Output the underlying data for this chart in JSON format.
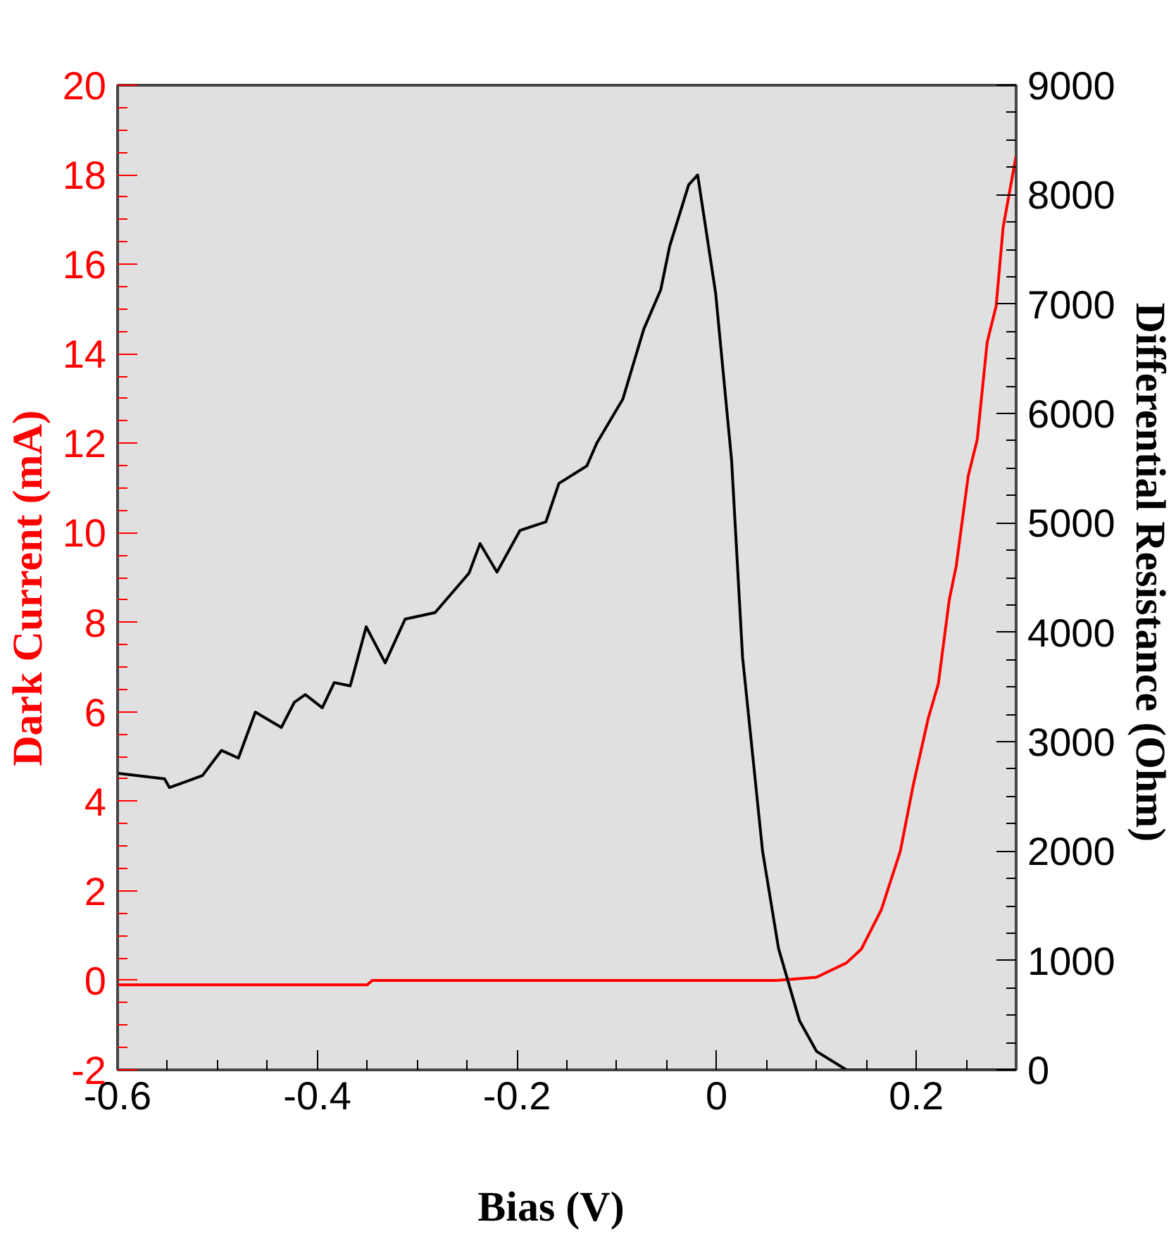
{
  "chart_data": {
    "type": "line",
    "xlabel": "Bias    (V)",
    "ylabel": "Dark Current   (mA)",
    "y2label": "Differential Resistance  (Ohm)",
    "xlim": [
      -0.6,
      0.3
    ],
    "xticks": [
      -0.6,
      -0.4,
      -0.2,
      0,
      0.2
    ],
    "ylim": [
      -2,
      20
    ],
    "yticks": [
      -2,
      0,
      2,
      4,
      6,
      8,
      10,
      12,
      14,
      16,
      18,
      20
    ],
    "y2lim": [
      0,
      9000
    ],
    "y2ticks": [
      0,
      1000,
      2000,
      3000,
      4000,
      5000,
      6000,
      7000,
      8000,
      9000
    ],
    "grid": false,
    "marker": "none",
    "line_style": "solid",
    "series": [
      {
        "color": "#ff0000",
        "x": [
          -0.6,
          -0.35,
          -0.345,
          0.06,
          0.1,
          0.13,
          0.145,
          0.165,
          0.184,
          0.197,
          0.212,
          0.222,
          0.233,
          0.24,
          0.252,
          0.261,
          0.271,
          0.28,
          0.287,
          0.3
        ],
        "values": [
          -0.1,
          -0.1,
          0,
          0,
          0.07,
          0.39,
          0.7,
          1.58,
          2.89,
          4.37,
          5.86,
          6.62,
          8.5,
          9.26,
          11.27,
          12.08,
          14.26,
          15.07,
          16.83,
          18.43
        ]
      },
      {
        "color": "#000000",
        "axis": "y2",
        "x": [
          -0.599,
          -0.553,
          -0.548,
          -0.515,
          -0.496,
          -0.479,
          -0.462,
          -0.436,
          -0.423,
          -0.412,
          -0.395,
          -0.383,
          -0.367,
          -0.351,
          -0.332,
          -0.312,
          -0.282,
          -0.248,
          -0.237,
          -0.22,
          -0.197,
          -0.171,
          -0.158,
          -0.13,
          -0.12,
          -0.094,
          -0.073,
          -0.056,
          -0.047,
          -0.028,
          -0.019,
          -0.001,
          0.015,
          0.026,
          0.046,
          0.062,
          0.083,
          0.1,
          0.13,
          0.165,
          0.3
        ],
        "values": [
          2710,
          2660,
          2580,
          2690,
          2920,
          2850,
          3270,
          3130,
          3360,
          3430,
          3310,
          3540,
          3510,
          4050,
          3720,
          4120,
          4180,
          4540,
          4810,
          4550,
          4930,
          5010,
          5360,
          5520,
          5730,
          6130,
          6770,
          7130,
          7530,
          8090,
          8180,
          7100,
          5570,
          3770,
          2000,
          1110,
          450,
          170,
          0,
          0,
          0
        ]
      }
    ]
  }
}
